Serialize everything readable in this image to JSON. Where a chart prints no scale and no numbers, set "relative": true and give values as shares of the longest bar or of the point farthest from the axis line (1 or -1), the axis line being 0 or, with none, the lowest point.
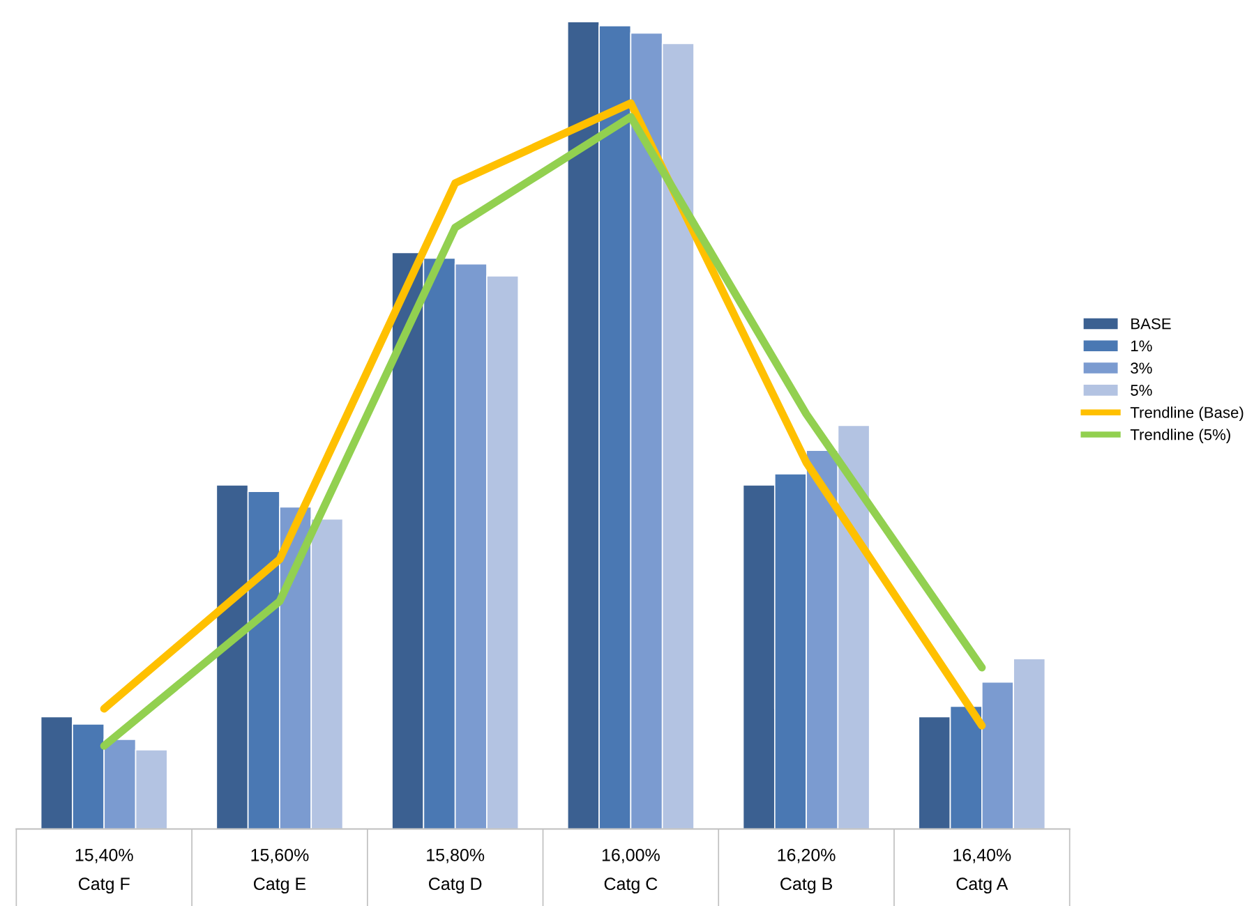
{
  "chart_data": {
    "type": "bar",
    "relative": true,
    "legend": "right",
    "categories": [
      "15,40%\nCatg F",
      "15,60%\nCatg E",
      "15,80%\nCatg D",
      "16,00%\nCatg C",
      "16,20%\nCatg B",
      "16,40%\nCatg A"
    ],
    "series": [
      {
        "name": "BASE",
        "color": "#3b6091",
        "values": [
          0.139,
          0.426,
          0.714,
          1.0,
          0.426,
          0.139
        ]
      },
      {
        "name": "1%",
        "color": "#4a78b3",
        "values": [
          0.13,
          0.418,
          0.707,
          0.995,
          0.44,
          0.152
        ]
      },
      {
        "name": "3%",
        "color": "#7b9bd0",
        "values": [
          0.111,
          0.399,
          0.7,
          0.986,
          0.469,
          0.182
        ]
      },
      {
        "name": "5%",
        "color": "#b3c3e2",
        "values": [
          0.098,
          0.384,
          0.685,
          0.973,
          0.5,
          0.211
        ]
      },
      {
        "name": "Trendline (Base)",
        "type": "line",
        "color": "#ffc000",
        "values": [
          0.149,
          0.334,
          0.8,
          0.899,
          0.454,
          0.128
        ]
      },
      {
        "name": "Trendline (5%)",
        "type": "line",
        "color": "#92d050",
        "values": [
          0.103,
          0.282,
          0.745,
          0.882,
          0.514,
          0.2
        ]
      }
    ]
  }
}
